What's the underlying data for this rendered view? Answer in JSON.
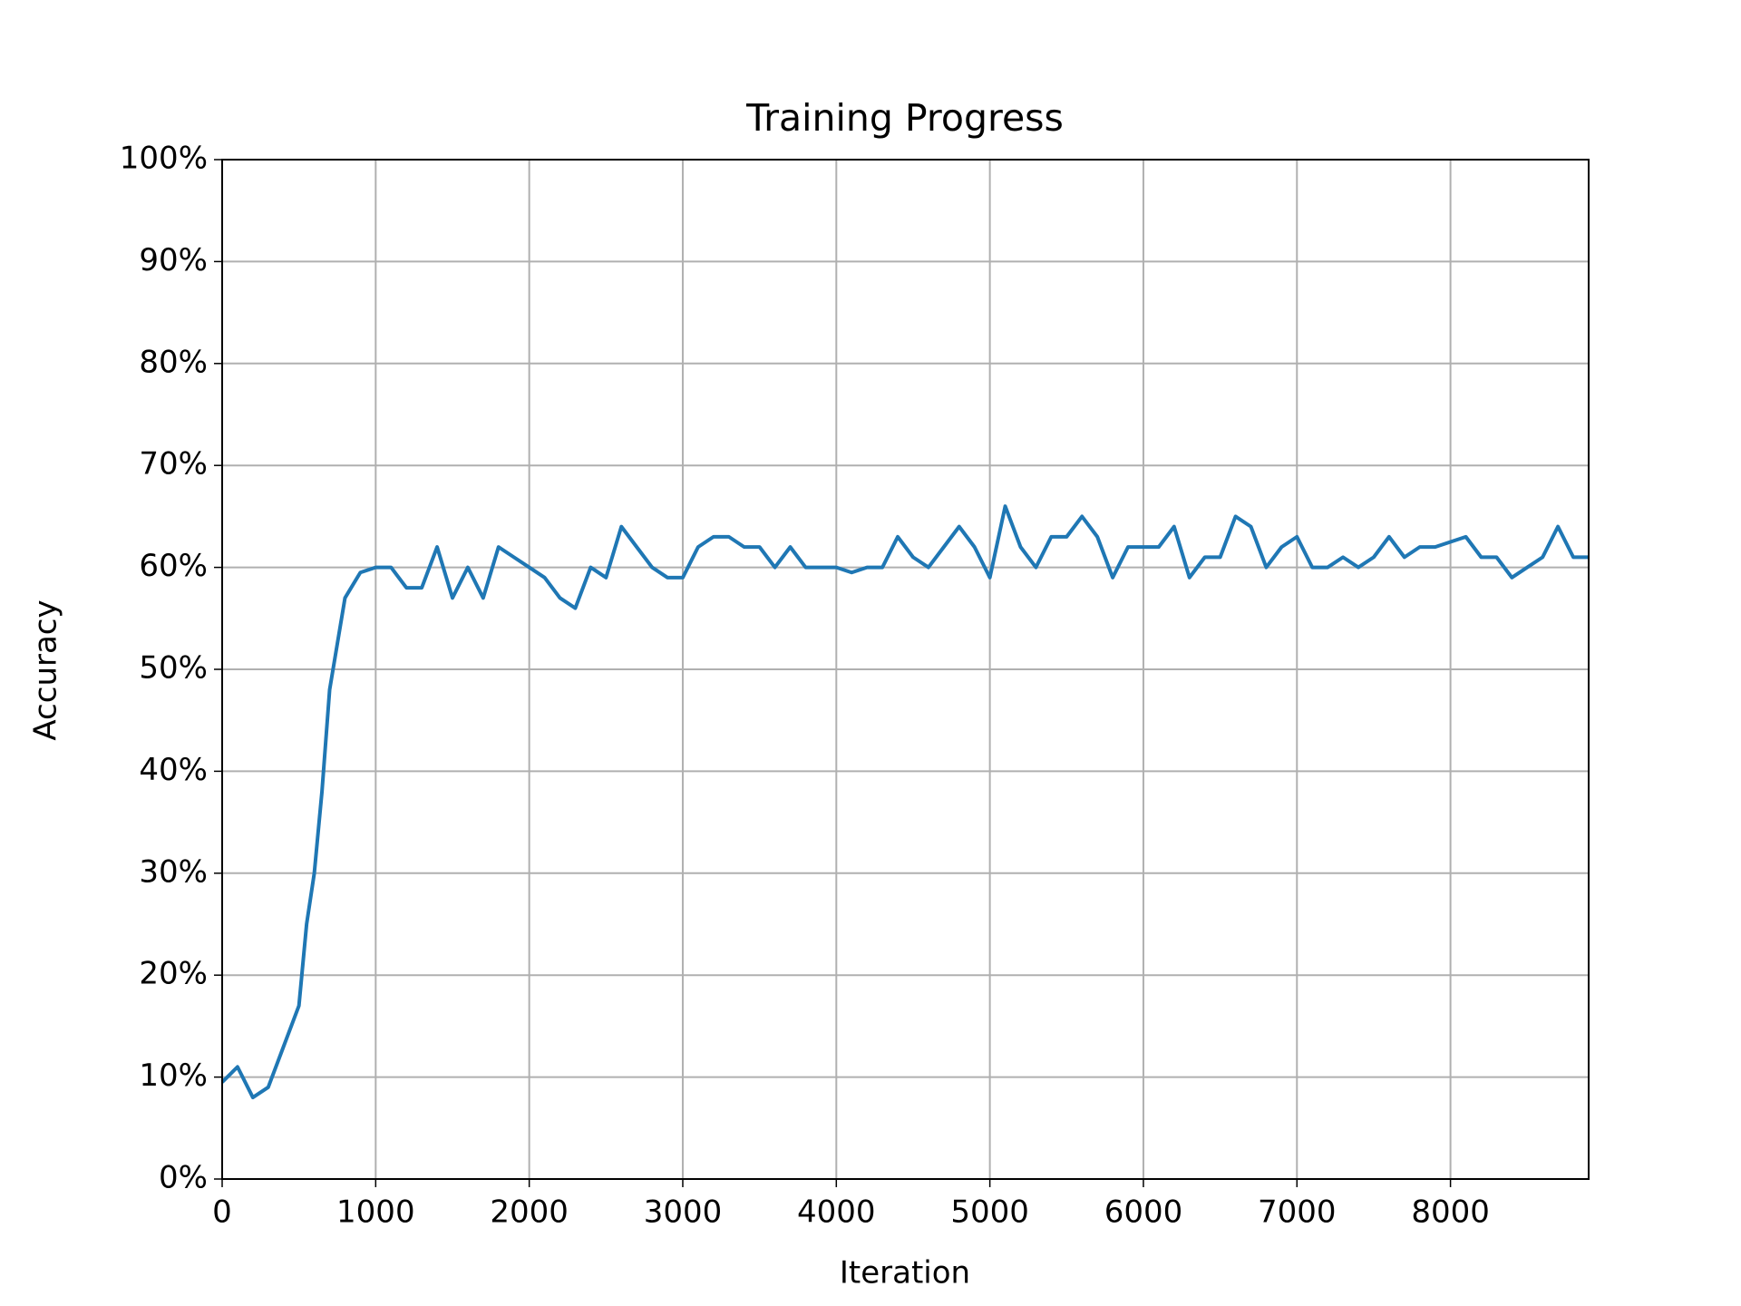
{
  "chart_data": {
    "type": "line",
    "title": "Training Progress",
    "x_label": "Iteration",
    "y_label": "Accuracy",
    "x": [
      0,
      100,
      200,
      300,
      400,
      500,
      550,
      600,
      650,
      700,
      800,
      900,
      1000,
      1100,
      1200,
      1300,
      1400,
      1500,
      1600,
      1700,
      1800,
      1900,
      2000,
      2100,
      2200,
      2300,
      2400,
      2500,
      2600,
      2700,
      2800,
      2900,
      3000,
      3100,
      3200,
      3300,
      3400,
      3500,
      3600,
      3700,
      3800,
      3900,
      4000,
      4100,
      4200,
      4300,
      4400,
      4500,
      4600,
      4700,
      4800,
      4900,
      5000,
      5100,
      5200,
      5300,
      5400,
      5500,
      5600,
      5700,
      5800,
      5900,
      6000,
      6100,
      6200,
      6300,
      6400,
      6500,
      6600,
      6700,
      6800,
      6900,
      7000,
      7100,
      7200,
      7300,
      7400,
      7500,
      7600,
      7700,
      7800,
      7900,
      8000,
      8100,
      8200,
      8300,
      8400,
      8500,
      8600,
      8700,
      8800,
      8900
    ],
    "values": [
      9.5,
      11,
      8,
      9,
      13,
      17,
      25,
      30,
      38,
      48,
      57,
      59.5,
      60,
      60,
      58,
      58,
      62,
      57,
      60,
      57,
      62,
      61,
      60,
      59,
      57,
      56,
      60,
      59,
      64,
      62,
      60,
      59,
      59,
      62,
      63,
      63,
      62,
      62,
      60,
      62,
      60,
      60,
      60,
      59.5,
      60,
      60,
      63,
      61,
      60,
      62,
      64,
      62,
      59,
      66,
      62,
      60,
      63,
      63,
      65,
      63,
      59,
      62,
      62,
      62,
      64,
      59,
      61,
      61,
      65,
      64,
      60,
      62,
      63,
      60,
      60,
      61,
      60,
      61,
      63,
      61,
      62,
      62,
      62.5,
      63,
      61,
      61,
      59,
      60,
      61,
      64,
      61,
      61
    ],
    "color": "#1f77b4",
    "xlim": [
      0,
      8900
    ],
    "ylim": [
      0,
      100
    ],
    "xticks": [
      0,
      1000,
      2000,
      3000,
      4000,
      5000,
      6000,
      7000,
      8000
    ],
    "yticks": [
      {
        "value": 0,
        "label": "0%"
      },
      {
        "value": 10,
        "label": "10%"
      },
      {
        "value": 20,
        "label": "20%"
      },
      {
        "value": 30,
        "label": "30%"
      },
      {
        "value": 40,
        "label": "40%"
      },
      {
        "value": 50,
        "label": "50%"
      },
      {
        "value": 60,
        "label": "60%"
      },
      {
        "value": 70,
        "label": "70%"
      },
      {
        "value": 80,
        "label": "80%"
      },
      {
        "value": 90,
        "label": "90%"
      },
      {
        "value": 100,
        "label": "100%"
      }
    ],
    "grid": true
  }
}
